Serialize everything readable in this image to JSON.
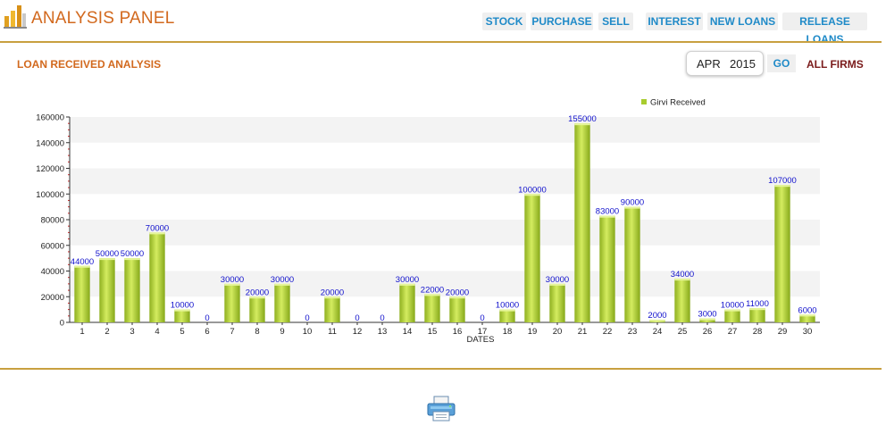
{
  "header": {
    "title": "ANALYSIS PANEL",
    "nav": [
      "STOCK",
      "PURCHASE",
      "SELL",
      "INTEREST",
      "NEW LOANS",
      "RELEASE LOANS"
    ]
  },
  "section": {
    "title": "LOAN RECEIVED ANALYSIS",
    "month": "APR",
    "year": "2015",
    "go_label": "GO",
    "firms_label": "ALL FIRMS"
  },
  "icons": {
    "logo": "bar-chart-logo-icon",
    "print": "printer-icon"
  },
  "colors": {
    "accent": "#d2691e",
    "nav_text": "#1f8ac8",
    "divider": "#c8a040",
    "bar": "#a8cc2e",
    "value_label": "#1010cc"
  },
  "chart_data": {
    "type": "bar",
    "categories": [
      "1",
      "2",
      "3",
      "4",
      "5",
      "6",
      "7",
      "8",
      "9",
      "10",
      "11",
      "12",
      "13",
      "14",
      "15",
      "16",
      "17",
      "18",
      "19",
      "20",
      "21",
      "22",
      "23",
      "24",
      "25",
      "26",
      "27",
      "28",
      "29",
      "30"
    ],
    "series": [
      {
        "name": "Girvi Received",
        "values": [
          44000,
          50000,
          50000,
          70000,
          10000,
          0,
          30000,
          20000,
          30000,
          0,
          20000,
          0,
          0,
          30000,
          22000,
          20000,
          0,
          10000,
          100000,
          30000,
          155000,
          83000,
          90000,
          2000,
          34000,
          3000,
          10000,
          11000,
          107000,
          6000
        ]
      }
    ],
    "xlabel": "DATES",
    "ylabel": "",
    "ylim": [
      0,
      160000
    ],
    "yticks": [
      "0",
      "20000",
      "40000",
      "60000",
      "80000",
      "100000",
      "120000",
      "140000",
      "160000"
    ],
    "grid": "alternating bands",
    "legend": "top-right"
  }
}
